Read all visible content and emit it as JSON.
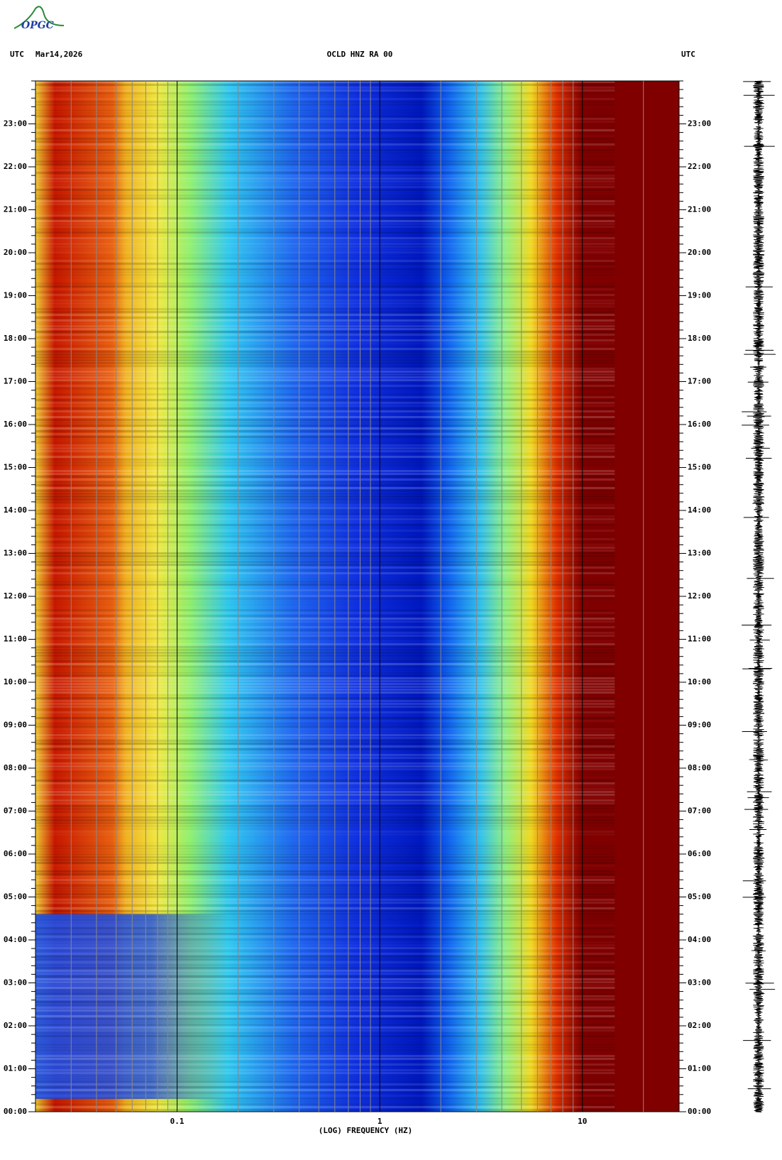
{
  "logo": "OPGC",
  "chart_data": {
    "type": "spectrogram",
    "title": "OCLD HNZ RA 00",
    "timezone_left": "UTC",
    "date": "Mar14,2026",
    "timezone_right": "UTC",
    "x_label": "(LOG) FREQUENCY (HZ)",
    "x_log": true,
    "xlim": [
      0.02,
      30
    ],
    "xticks": [
      0.1,
      1,
      10
    ],
    "xminorticks": [
      0.03,
      0.04,
      0.05,
      0.06,
      0.07,
      0.08,
      0.09,
      0.2,
      0.3,
      0.4,
      0.5,
      0.6,
      0.7,
      0.8,
      0.9,
      2,
      3,
      4,
      5,
      6,
      7,
      8,
      9,
      20
    ],
    "ylim": [
      0,
      24
    ],
    "yticks": [
      {
        "value": 0,
        "label": "00:00"
      },
      {
        "value": 1,
        "label": "01:00"
      },
      {
        "value": 2,
        "label": "02:00"
      },
      {
        "value": 3,
        "label": "03:00"
      },
      {
        "value": 4,
        "label": "04:00"
      },
      {
        "value": 5,
        "label": "05:00"
      },
      {
        "value": 6,
        "label": "06:00"
      },
      {
        "value": 7,
        "label": "07:00"
      },
      {
        "value": 8,
        "label": "08:00"
      },
      {
        "value": 9,
        "label": "09:00"
      },
      {
        "value": 10,
        "label": "10:00"
      },
      {
        "value": 11,
        "label": "11:00"
      },
      {
        "value": 12,
        "label": "12:00"
      },
      {
        "value": 13,
        "label": "13:00"
      },
      {
        "value": 14,
        "label": "14:00"
      },
      {
        "value": 15,
        "label": "15:00"
      },
      {
        "value": 16,
        "label": "16:00"
      },
      {
        "value": 17,
        "label": "17:00"
      },
      {
        "value": 18,
        "label": "18:00"
      },
      {
        "value": 19,
        "label": "19:00"
      },
      {
        "value": 20,
        "label": "20:00"
      },
      {
        "value": 21,
        "label": "21:00"
      },
      {
        "value": 22,
        "label": "22:00"
      },
      {
        "value": 23,
        "label": "23:00"
      }
    ]
  }
}
